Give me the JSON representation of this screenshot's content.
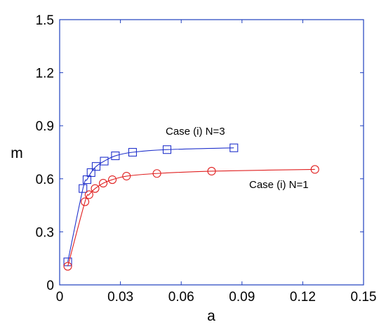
{
  "chart_data": {
    "type": "line",
    "xlabel": "a",
    "ylabel": "m",
    "xlim": [
      0,
      0.15
    ],
    "ylim": [
      0,
      1.5
    ],
    "x_ticks": [
      "0",
      "0.03",
      "0.06",
      "0.09",
      "0.12",
      "0.15"
    ],
    "y_ticks": [
      "0",
      "0.3",
      "0.6",
      "0.9",
      "1.2",
      "1.5"
    ],
    "grid": false,
    "legend": "none",
    "frame_color": "#1f3fbf",
    "annotations": [
      {
        "text": "Case (i) N=3",
        "series": "case-n3"
      },
      {
        "text": "Case (i) N=1",
        "series": "case-n1"
      }
    ],
    "series": [
      {
        "id": "case-n3",
        "color": "#2233cc",
        "marker": "square",
        "points": [
          [
            0.004,
            0.13
          ],
          [
            0.0115,
            0.545
          ],
          [
            0.0135,
            0.595
          ],
          [
            0.0155,
            0.635
          ],
          [
            0.018,
            0.67
          ],
          [
            0.022,
            0.7
          ],
          [
            0.0275,
            0.73
          ],
          [
            0.036,
            0.75
          ],
          [
            0.053,
            0.765
          ],
          [
            0.086,
            0.775
          ]
        ]
      },
      {
        "id": "case-n1",
        "color": "#e02020",
        "marker": "circle",
        "points": [
          [
            0.004,
            0.105
          ],
          [
            0.0125,
            0.47
          ],
          [
            0.0145,
            0.51
          ],
          [
            0.0175,
            0.545
          ],
          [
            0.0215,
            0.575
          ],
          [
            0.026,
            0.595
          ],
          [
            0.033,
            0.615
          ],
          [
            0.048,
            0.63
          ],
          [
            0.075,
            0.643
          ],
          [
            0.126,
            0.653
          ]
        ]
      }
    ]
  }
}
